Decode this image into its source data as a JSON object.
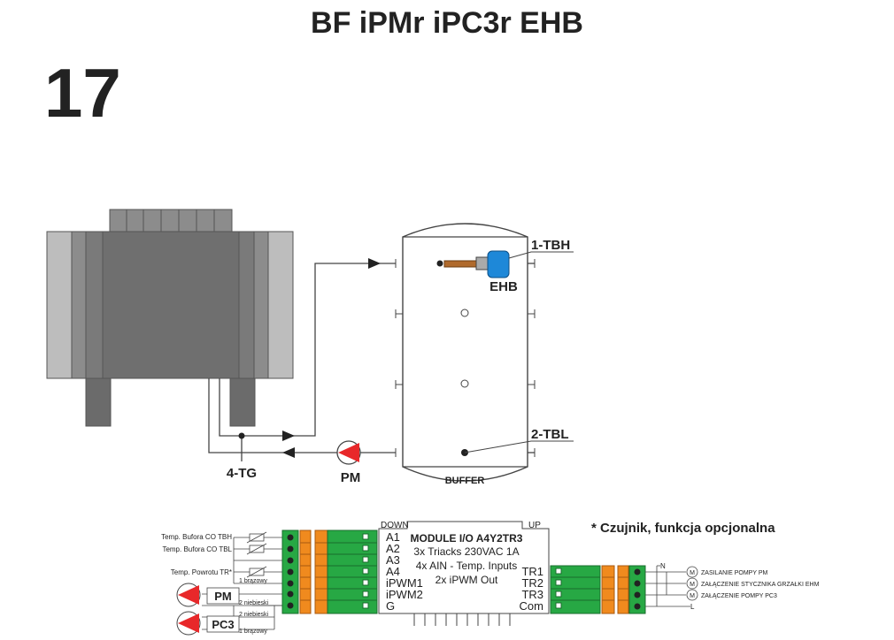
{
  "title": "BF iPMr iPC3r EHB",
  "page_number": "17",
  "labels": {
    "tbh": "1-TBH",
    "tbl": "2-TBL",
    "tg": "4-TG",
    "ehb": "EHB",
    "pm": "PM",
    "buffer": "BUFFER"
  },
  "optional_note": "* Czujnik, funkcja opcjonalna",
  "module": {
    "title": "MODULE I/O A4Y2TR3",
    "line1": "3x Triacks 230VAC 1A",
    "line2": "4x AIN - Temp. Inputs",
    "line3": "2x iPWM Out",
    "down": "DOWN",
    "up": "UP",
    "inputs": [
      "A1",
      "A2",
      "A3",
      "A4",
      "iPWM1",
      "iPWM2",
      "G"
    ],
    "outputs": [
      "TR1",
      "TR2",
      "TR3",
      "Com"
    ]
  },
  "sensors": {
    "tbh": "Temp. Bufora CO TBH",
    "tbl": "Temp. Bufora CO TBL",
    "tr": "Temp. Powrotu TR*"
  },
  "wires": {
    "brown1": "1 brązowy",
    "blue1": "2 niebieski",
    "blue2": "2 niebieski",
    "brown2": "1 brązowy"
  },
  "pumps": {
    "pm": "PM",
    "pc3": "PC3"
  },
  "outputs_right": {
    "n": "N",
    "l": "L",
    "motor": "M",
    "o1": "ZASILANIE POMPY PM",
    "o2": "ZAŁĄCZENIE STYCZNIKA GRZAŁKI EHM",
    "o3": "ZAŁĄCZENIE POMPY PC3"
  },
  "colors": {
    "boiler_light": "#bdbdbd",
    "boiler_mid": "#8c8c8c",
    "boiler_dark": "#6b6b6b",
    "pump_red": "#e8282a",
    "terminal_green": "#27a844",
    "terminal_orange": "#f08a1e",
    "ehb_blue": "#1e88d8",
    "pipe": "#444444"
  }
}
